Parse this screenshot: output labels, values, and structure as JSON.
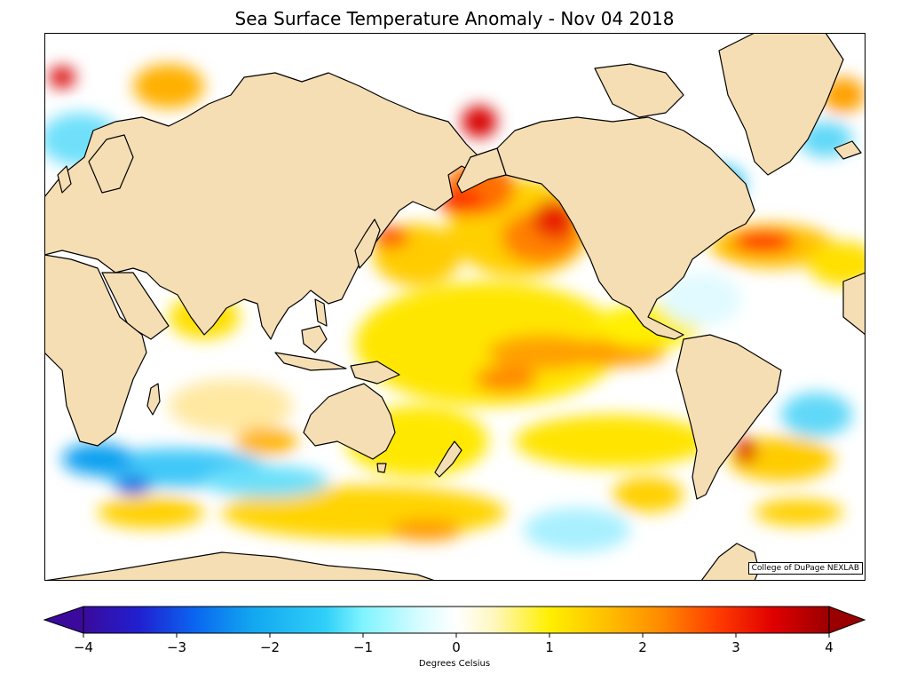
{
  "title": "Sea Surface Temperature Anomaly - Nov 04 2018",
  "credit": "College of DuPage NEXLAB",
  "colorbar": {
    "label": "Degrees Celsius",
    "min": -4,
    "max": 4,
    "ticks": [
      -4,
      -3,
      -2,
      -1,
      0,
      1,
      2,
      3,
      4
    ],
    "tick_labels": [
      "−4",
      "−3",
      "−2",
      "−1",
      "0",
      "1",
      "2",
      "3",
      "4"
    ],
    "extend": "both",
    "stops": [
      [
        -4,
        "#3a0a9c"
      ],
      [
        -3.4,
        "#2020d0"
      ],
      [
        -2.8,
        "#0a66f0"
      ],
      [
        -2.2,
        "#12a6f0"
      ],
      [
        -1.4,
        "#30d0f8"
      ],
      [
        -1.0,
        "#80f4ff"
      ],
      [
        -0.4,
        "#d6fcff"
      ],
      [
        0,
        "#ffffff"
      ],
      [
        0.4,
        "#fff7c0"
      ],
      [
        1.0,
        "#ffef00"
      ],
      [
        1.6,
        "#ffc000"
      ],
      [
        2.2,
        "#ff8a00"
      ],
      [
        2.8,
        "#ff3c00"
      ],
      [
        3.4,
        "#e00000"
      ],
      [
        4,
        "#9a0000"
      ]
    ]
  },
  "colors": {
    "land": "#f5deb3",
    "coast": "#000000",
    "borders": "#888888",
    "ocean_background": "#ffffff"
  }
}
